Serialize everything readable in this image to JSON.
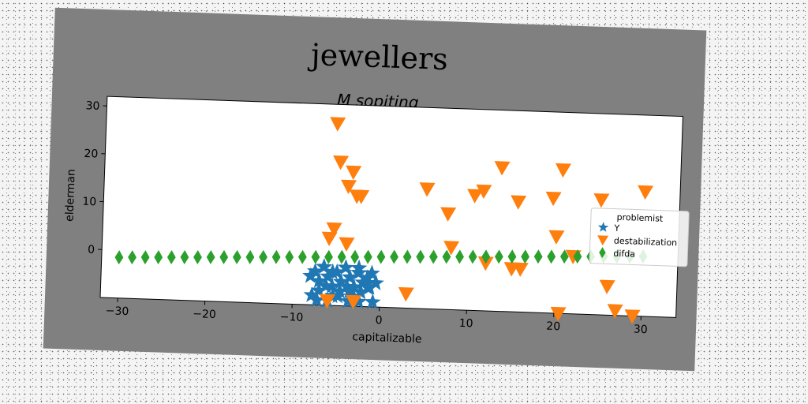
{
  "figure": {
    "title": "jewellers"
  },
  "chart_data": {
    "type": "scatter",
    "title": "M sopiting",
    "xlabel": "capitalizable",
    "ylabel": "elderman",
    "xlim": [
      -32,
      34
    ],
    "ylim": [
      -10,
      32
    ],
    "xticks": [
      -30,
      -20,
      -10,
      0,
      10,
      20,
      30
    ],
    "yticks": [
      0,
      10,
      20,
      30
    ],
    "grid": false,
    "legend": {
      "title": "problemist",
      "position": "right"
    },
    "series": [
      {
        "name": "Y",
        "marker": "star",
        "color": "#1f77b4",
        "x": [
          -8,
          -7.5,
          -7,
          -6.5,
          -6,
          -5.5,
          -5,
          -4.5,
          -4,
          -3.5,
          -3,
          -2.5,
          -2,
          -1.5,
          -1,
          -0.5,
          -7.8,
          -7,
          -6.2,
          -5.4,
          -4.6,
          -3.8,
          -3,
          -2.2,
          -1.4,
          -6.5,
          -5.5,
          -4.5,
          -3.5,
          -2.5,
          -7.2,
          -6,
          -4.8,
          -3.6,
          -2.4,
          -1.2,
          -0.8
        ],
        "y": [
          -4,
          -3,
          -5,
          -2,
          -4,
          -6,
          -3,
          -5,
          -2,
          -4,
          -6,
          -3,
          -5,
          -4,
          -3,
          -5,
          -8,
          -7,
          -6,
          -8,
          -7,
          -6,
          -8,
          -7,
          -6,
          -2,
          -3,
          -5,
          -7,
          -2,
          -9,
          -9,
          -8,
          -9,
          -9,
          -6,
          -9
        ]
      },
      {
        "name": "destabilization",
        "marker": "triangle_down",
        "color": "#ff7f0e",
        "x": [
          -6,
          -5.5,
          -5,
          -4,
          -3.5,
          -3,
          -2.5,
          -5.5,
          -6,
          -4,
          -6,
          -3,
          3,
          5,
          7.5,
          8,
          10.5,
          11.5,
          12,
          13.5,
          15,
          15.5,
          16,
          19.5,
          20,
          20.5,
          20.5,
          22,
          25,
          26,
          27,
          29,
          30
        ],
        "y": [
          -9,
          28,
          20,
          15,
          18,
          13,
          13,
          6,
          4,
          3,
          -9,
          -9,
          -7,
          15,
          10,
          3,
          14,
          15,
          0,
          20,
          -1,
          13,
          -1,
          14,
          6,
          -10,
          20,
          2,
          14,
          -4,
          -9,
          -10,
          16
        ]
      },
      {
        "name": "difda",
        "marker": "thin_diamond",
        "color": "#2ca02c",
        "x": [
          -30,
          -28.5,
          -27,
          -25.5,
          -24,
          -22.5,
          -21,
          -19.5,
          -18,
          -16.5,
          -15,
          -13.5,
          -12,
          -10.5,
          -9,
          -7.5,
          -6,
          -4.5,
          -3,
          -1.5,
          0,
          1.5,
          3,
          4.5,
          6,
          7.5,
          9,
          10.5,
          12,
          13.5,
          15,
          16.5,
          18,
          19.5,
          21,
          22.5,
          24,
          25.5,
          27,
          28.5,
          30
        ],
        "y": [
          -1.5,
          -1.4,
          -1.3,
          -1.2,
          -1.1,
          -1,
          -0.9,
          -0.8,
          -0.7,
          -0.6,
          -0.5,
          -0.4,
          -0.3,
          -0.2,
          -0.1,
          0,
          0.1,
          0.2,
          0.3,
          0.4,
          0.5,
          0.6,
          0.7,
          0.8,
          0.9,
          1,
          1.1,
          1.2,
          1.3,
          1.4,
          1.5,
          1.6,
          1.7,
          1.8,
          1.9,
          2,
          2.1,
          2.2,
          2.3,
          2.4,
          2.5
        ]
      }
    ]
  }
}
